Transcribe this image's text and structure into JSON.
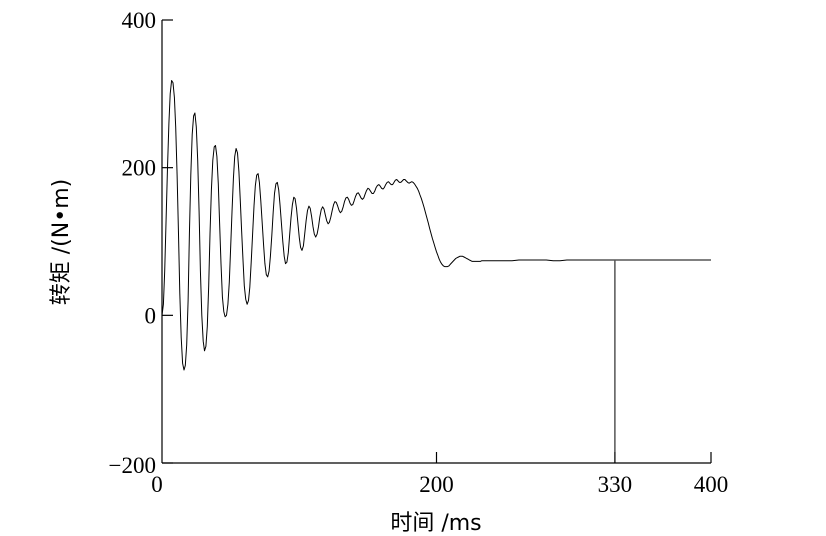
{
  "chart_data": {
    "type": "line",
    "title": "",
    "xlabel": "时间 /ms",
    "ylabel": "转矩 /(N•m)",
    "xlim": [
      0,
      400
    ],
    "ylim": [
      -200,
      400
    ],
    "x_ticks": [
      0,
      200,
      330,
      400
    ],
    "y_ticks": [
      -200,
      0,
      200,
      400
    ],
    "grid": false,
    "legend": "none",
    "marker_line": {
      "x": 330,
      "y": 74
    },
    "series": [
      {
        "color": "#000000",
        "points": [
          [
            0,
            -200
          ],
          [
            0,
            0
          ],
          [
            1,
            15
          ],
          [
            2,
            60
          ],
          [
            3,
            130
          ],
          [
            4,
            200
          ],
          [
            5,
            260
          ],
          [
            6,
            300
          ],
          [
            7,
            318
          ],
          [
            8,
            315
          ],
          [
            9,
            295
          ],
          [
            10,
            255
          ],
          [
            11,
            190
          ],
          [
            12,
            110
          ],
          [
            13,
            30
          ],
          [
            14,
            -30
          ],
          [
            15,
            -65
          ],
          [
            16,
            -74
          ],
          [
            17,
            -68
          ],
          [
            18,
            -40
          ],
          [
            19,
            20
          ],
          [
            20,
            110
          ],
          [
            21,
            190
          ],
          [
            22,
            245
          ],
          [
            23,
            270
          ],
          [
            24,
            274
          ],
          [
            25,
            255
          ],
          [
            26,
            210
          ],
          [
            27,
            140
          ],
          [
            28,
            60
          ],
          [
            29,
            0
          ],
          [
            30,
            -35
          ],
          [
            31,
            -48
          ],
          [
            32,
            -42
          ],
          [
            33,
            -15
          ],
          [
            34,
            40
          ],
          [
            35,
            110
          ],
          [
            36,
            170
          ],
          [
            37,
            210
          ],
          [
            38,
            228
          ],
          [
            39,
            230
          ],
          [
            40,
            215
          ],
          [
            41,
            178
          ],
          [
            42,
            125
          ],
          [
            43,
            70
          ],
          [
            44,
            25
          ],
          [
            45,
            5
          ],
          [
            46,
            -2
          ],
          [
            47,
            0
          ],
          [
            48,
            15
          ],
          [
            49,
            45
          ],
          [
            50,
            90
          ],
          [
            51,
            140
          ],
          [
            52,
            185
          ],
          [
            53,
            215
          ],
          [
            54,
            226
          ],
          [
            55,
            220
          ],
          [
            56,
            195
          ],
          [
            57,
            158
          ],
          [
            58,
            115
          ],
          [
            59,
            75
          ],
          [
            60,
            40
          ],
          [
            61,
            22
          ],
          [
            62,
            15
          ],
          [
            63,
            20
          ],
          [
            64,
            38
          ],
          [
            65,
            72
          ],
          [
            66,
            110
          ],
          [
            67,
            148
          ],
          [
            68,
            175
          ],
          [
            69,
            190
          ],
          [
            70,
            192
          ],
          [
            71,
            180
          ],
          [
            72,
            155
          ],
          [
            73,
            125
          ],
          [
            74,
            95
          ],
          [
            75,
            70
          ],
          [
            76,
            55
          ],
          [
            77,
            52
          ],
          [
            78,
            60
          ],
          [
            79,
            80
          ],
          [
            80,
            108
          ],
          [
            81,
            140
          ],
          [
            82,
            165
          ],
          [
            83,
            178
          ],
          [
            84,
            180
          ],
          [
            85,
            170
          ],
          [
            86,
            150
          ],
          [
            87,
            125
          ],
          [
            88,
            100
          ],
          [
            89,
            80
          ],
          [
            90,
            70
          ],
          [
            91,
            72
          ],
          [
            92,
            85
          ],
          [
            93,
            108
          ],
          [
            94,
            132
          ],
          [
            95,
            150
          ],
          [
            96,
            160
          ],
          [
            97,
            158
          ],
          [
            98,
            145
          ],
          [
            99,
            125
          ],
          [
            100,
            105
          ],
          [
            101,
            92
          ],
          [
            102,
            88
          ],
          [
            103,
            94
          ],
          [
            104,
            110
          ],
          [
            105,
            128
          ],
          [
            106,
            142
          ],
          [
            107,
            148
          ],
          [
            108,
            145
          ],
          [
            109,
            134
          ],
          [
            110,
            120
          ],
          [
            111,
            110
          ],
          [
            112,
            106
          ],
          [
            113,
            110
          ],
          [
            114,
            120
          ],
          [
            115,
            133
          ],
          [
            116,
            143
          ],
          [
            117,
            147
          ],
          [
            118,
            144
          ],
          [
            119,
            136
          ],
          [
            120,
            128
          ],
          [
            121,
            124
          ],
          [
            122,
            126
          ],
          [
            123,
            133
          ],
          [
            124,
            142
          ],
          [
            125,
            150
          ],
          [
            126,
            154
          ],
          [
            127,
            153
          ],
          [
            128,
            148
          ],
          [
            129,
            142
          ],
          [
            130,
            139
          ],
          [
            131,
            141
          ],
          [
            132,
            147
          ],
          [
            133,
            154
          ],
          [
            134,
            159
          ],
          [
            135,
            160
          ],
          [
            136,
            157
          ],
          [
            137,
            152
          ],
          [
            138,
            149
          ],
          [
            139,
            150
          ],
          [
            140,
            155
          ],
          [
            141,
            161
          ],
          [
            142,
            165
          ],
          [
            143,
            166
          ],
          [
            144,
            163
          ],
          [
            145,
            159
          ],
          [
            146,
            157
          ],
          [
            147,
            159
          ],
          [
            148,
            164
          ],
          [
            149,
            169
          ],
          [
            150,
            172
          ],
          [
            151,
            171
          ],
          [
            152,
            168
          ],
          [
            153,
            165
          ],
          [
            154,
            165
          ],
          [
            155,
            168
          ],
          [
            156,
            173
          ],
          [
            157,
            176
          ],
          [
            158,
            177
          ],
          [
            159,
            175
          ],
          [
            160,
            172
          ],
          [
            161,
            171
          ],
          [
            162,
            173
          ],
          [
            163,
            177
          ],
          [
            164,
            180
          ],
          [
            165,
            181
          ],
          [
            166,
            179
          ],
          [
            167,
            177
          ],
          [
            168,
            177
          ],
          [
            169,
            180
          ],
          [
            170,
            183
          ],
          [
            171,
            184
          ],
          [
            172,
            182
          ],
          [
            173,
            180
          ],
          [
            174,
            180
          ],
          [
            175,
            182
          ],
          [
            176,
            184
          ],
          [
            177,
            184
          ],
          [
            178,
            182
          ],
          [
            179,
            180
          ],
          [
            180,
            179
          ],
          [
            181,
            180
          ],
          [
            182,
            181
          ],
          [
            183,
            180
          ],
          [
            184,
            178
          ],
          [
            185,
            175
          ],
          [
            186,
            172
          ],
          [
            187,
            168
          ],
          [
            188,
            163
          ],
          [
            189,
            158
          ],
          [
            190,
            152
          ],
          [
            191,
            146
          ],
          [
            192,
            139
          ],
          [
            193,
            132
          ],
          [
            194,
            125
          ],
          [
            195,
            118
          ],
          [
            196,
            111
          ],
          [
            197,
            104
          ],
          [
            198,
            98
          ],
          [
            199,
            92
          ],
          [
            200,
            86
          ],
          [
            201,
            81
          ],
          [
            202,
            76
          ],
          [
            203,
            72
          ],
          [
            204,
            69
          ],
          [
            205,
            67
          ],
          [
            206,
            66
          ],
          [
            207,
            66
          ],
          [
            208,
            66
          ],
          [
            209,
            67
          ],
          [
            210,
            69
          ],
          [
            211,
            71
          ],
          [
            212,
            73
          ],
          [
            213,
            75
          ],
          [
            214,
            77
          ],
          [
            215,
            78
          ],
          [
            216,
            79
          ],
          [
            217,
            80
          ],
          [
            218,
            80
          ],
          [
            219,
            80
          ],
          [
            220,
            79
          ],
          [
            221,
            78
          ],
          [
            222,
            77
          ],
          [
            223,
            76
          ],
          [
            224,
            75
          ],
          [
            225,
            74
          ],
          [
            226,
            73
          ],
          [
            227,
            73
          ],
          [
            228,
            73
          ],
          [
            229,
            73
          ],
          [
            230,
            73
          ],
          [
            231,
            73
          ],
          [
            232,
            73
          ],
          [
            233,
            74
          ],
          [
            234,
            74
          ],
          [
            235,
            74
          ],
          [
            240,
            74
          ],
          [
            245,
            74
          ],
          [
            250,
            74
          ],
          [
            255,
            74
          ],
          [
            260,
            75
          ],
          [
            265,
            75
          ],
          [
            270,
            75
          ],
          [
            275,
            75
          ],
          [
            280,
            75
          ],
          [
            285,
            74
          ],
          [
            290,
            74
          ],
          [
            295,
            75
          ],
          [
            300,
            75
          ],
          [
            305,
            75
          ],
          [
            310,
            75
          ],
          [
            315,
            75
          ],
          [
            320,
            75
          ],
          [
            325,
            75
          ],
          [
            330,
            75
          ],
          [
            335,
            75
          ],
          [
            340,
            75
          ],
          [
            345,
            75
          ],
          [
            350,
            75
          ],
          [
            355,
            75
          ],
          [
            360,
            75
          ],
          [
            365,
            75
          ],
          [
            370,
            75
          ],
          [
            375,
            75
          ],
          [
            380,
            75
          ],
          [
            385,
            75
          ],
          [
            390,
            75
          ],
          [
            395,
            75
          ],
          [
            400,
            75
          ]
        ]
      }
    ]
  }
}
